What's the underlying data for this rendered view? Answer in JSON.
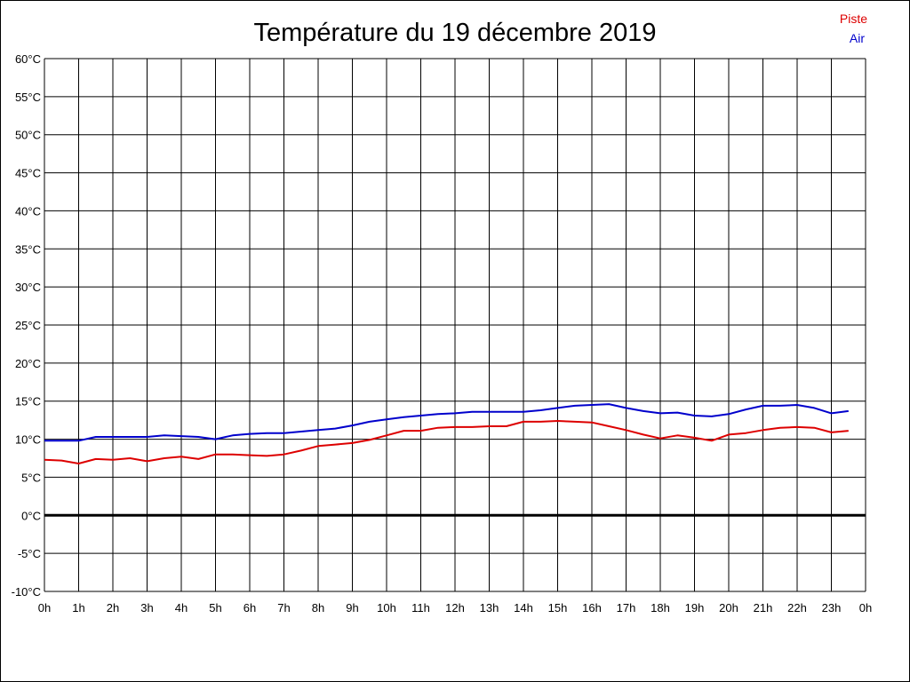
{
  "chart_data": {
    "type": "line",
    "title": "Température du 19 décembre 2019",
    "xlabel": "",
    "ylabel": "",
    "x_tick_labels": [
      "0h",
      "1h",
      "2h",
      "3h",
      "4h",
      "5h",
      "6h",
      "7h",
      "8h",
      "9h",
      "10h",
      "11h",
      "12h",
      "13h",
      "14h",
      "15h",
      "16h",
      "17h",
      "18h",
      "19h",
      "20h",
      "21h",
      "22h",
      "23h",
      "0h"
    ],
    "y_tick_labels": [
      "60°C",
      "55°C",
      "50°C",
      "45°C",
      "40°C",
      "35°C",
      "30°C",
      "25°C",
      "20°C",
      "15°C",
      "10°C",
      "5°C",
      "0°C",
      "-5°C",
      "-10°C"
    ],
    "xlim": [
      0,
      24
    ],
    "ylim": [
      -10,
      60
    ],
    "grid": true,
    "legend_position": "top-right",
    "series": [
      {
        "name": "Piste",
        "color": "#dd0000",
        "x": [
          0,
          0.5,
          1,
          1.5,
          2,
          2.5,
          3,
          3.5,
          4,
          4.5,
          5,
          5.5,
          6,
          6.5,
          7,
          7.5,
          8,
          8.5,
          9,
          9.5,
          10,
          10.5,
          11,
          11.5,
          12,
          12.5,
          13,
          13.5,
          14,
          14.5,
          15,
          15.5,
          16,
          16.5,
          17,
          17.5,
          18,
          18.5,
          19,
          19.5,
          20,
          20.5,
          21,
          21.5,
          22,
          22.5,
          23,
          23.5
        ],
        "values": [
          7.3,
          7.2,
          6.8,
          7.4,
          7.3,
          7.5,
          7.1,
          7.5,
          7.7,
          7.4,
          8.0,
          8.0,
          7.9,
          7.8,
          8.0,
          8.5,
          9.1,
          9.3,
          9.5,
          9.9,
          10.5,
          11.1,
          11.1,
          11.5,
          11.6,
          11.6,
          11.7,
          11.7,
          12.3,
          12.3,
          12.4,
          12.3,
          12.2,
          11.7,
          11.2,
          10.6,
          10.1,
          10.5,
          10.2,
          9.8,
          10.6,
          10.8,
          11.2,
          11.5,
          11.6,
          11.5,
          10.9,
          11.1
        ]
      },
      {
        "name": "Air",
        "color": "#0000cc",
        "x": [
          0,
          0.5,
          1,
          1.5,
          2,
          2.5,
          3,
          3.5,
          4,
          4.5,
          5,
          5.5,
          6,
          6.5,
          7,
          7.5,
          8,
          8.5,
          9,
          9.5,
          10,
          10.5,
          11,
          11.5,
          12,
          12.5,
          13,
          13.5,
          14,
          14.5,
          15,
          15.5,
          16,
          16.5,
          17,
          17.5,
          18,
          18.5,
          19,
          19.5,
          20,
          20.5,
          21,
          21.5,
          22,
          22.5,
          23,
          23.5
        ],
        "values": [
          9.8,
          9.8,
          9.8,
          10.3,
          10.3,
          10.3,
          10.3,
          10.5,
          10.4,
          10.3,
          10.0,
          10.5,
          10.7,
          10.8,
          10.8,
          11.0,
          11.2,
          11.4,
          11.8,
          12.3,
          12.6,
          12.9,
          13.1,
          13.3,
          13.4,
          13.6,
          13.6,
          13.6,
          13.6,
          13.8,
          14.1,
          14.4,
          14.5,
          14.6,
          14.1,
          13.7,
          13.4,
          13.5,
          13.1,
          13.0,
          13.3,
          13.9,
          14.4,
          14.4,
          14.5,
          14.1,
          13.4,
          13.7
        ]
      }
    ]
  }
}
